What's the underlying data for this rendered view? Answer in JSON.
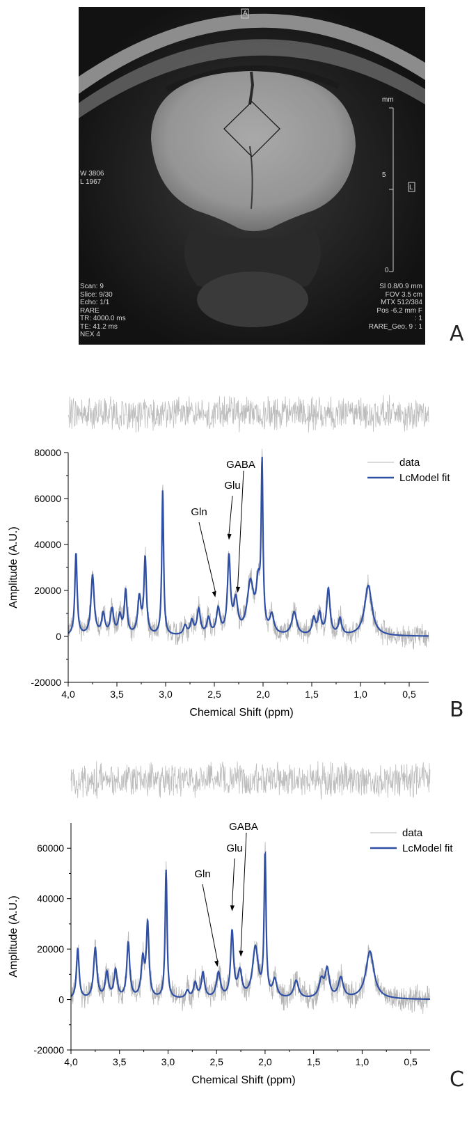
{
  "panel_a": {
    "letter": "A",
    "top_marker": "A",
    "right_marker": "L",
    "scale": {
      "unit": "mm",
      "mid": "5",
      "zero": "0"
    },
    "window_level": [
      "W 3806",
      "L 1967"
    ],
    "info_left": [
      "Scan: 9",
      "Slice: 9/30",
      "Echo: 1/1",
      "RARE",
      "TR: 4000.0 ms",
      "TE: 41.2 ms",
      "NEX 4"
    ],
    "info_right": [
      "Sl 0.8/0.9 mm",
      "FOV  3.5 cm",
      "MTX 512/384",
      "Pos -6.2 mm F",
      ": 1",
      "RARE_Geo, 9 : 1"
    ]
  },
  "chart_data": [
    {
      "type": "line",
      "panel_letter": "B",
      "xlabel": "Chemical Shift (ppm)",
      "ylabel": "Amplitude (A.U.)",
      "xlim": [
        4.0,
        0.3
      ],
      "ylim": [
        -20000,
        80000
      ],
      "xticks": [
        "4,0",
        "3,5",
        "3,0",
        "2,5",
        "2,0",
        "1,5",
        "1,0",
        "0,5"
      ],
      "yticks": [
        "-20000",
        "0",
        "20000",
        "40000",
        "60000",
        "80000"
      ],
      "legend": {
        "position": "top-right",
        "entries": [
          {
            "label": "data",
            "color": "#b5b5b5"
          },
          {
            "label": "LcModel fit",
            "color": "#2e4fa3"
          }
        ]
      },
      "annotations": [
        {
          "label": "Gln",
          "x": 2.49,
          "y": 17000
        },
        {
          "label": "Glu",
          "x": 2.35,
          "y": 42000
        },
        {
          "label": "GABA",
          "x": 2.26,
          "y": 19000
        }
      ],
      "peaks": [
        {
          "ppm": 3.92,
          "amp": 36000,
          "w": 0.014
        },
        {
          "ppm": 3.75,
          "amp": 26000,
          "w": 0.02
        },
        {
          "ppm": 3.64,
          "amp": 9000,
          "w": 0.02
        },
        {
          "ppm": 3.55,
          "amp": 11000,
          "w": 0.02
        },
        {
          "ppm": 3.47,
          "amp": 8000,
          "w": 0.02
        },
        {
          "ppm": 3.41,
          "amp": 19000,
          "w": 0.016
        },
        {
          "ppm": 3.27,
          "amp": 16000,
          "w": 0.02
        },
        {
          "ppm": 3.21,
          "amp": 33000,
          "w": 0.015
        },
        {
          "ppm": 3.03,
          "amp": 63000,
          "w": 0.011
        },
        {
          "ppm": 2.8,
          "amp": 4000,
          "w": 0.02
        },
        {
          "ppm": 2.73,
          "amp": 6000,
          "w": 0.02
        },
        {
          "ppm": 2.66,
          "amp": 11000,
          "w": 0.02
        },
        {
          "ppm": 2.56,
          "amp": 7000,
          "w": 0.02
        },
        {
          "ppm": 2.46,
          "amp": 11000,
          "w": 0.022
        },
        {
          "ppm": 2.35,
          "amp": 33000,
          "w": 0.018
        },
        {
          "ppm": 2.28,
          "amp": 14000,
          "w": 0.025
        },
        {
          "ppm": 2.13,
          "amp": 22000,
          "w": 0.04
        },
        {
          "ppm": 2.05,
          "amp": 19000,
          "w": 0.025
        },
        {
          "ppm": 2.01,
          "amp": 70000,
          "w": 0.011
        },
        {
          "ppm": 1.91,
          "amp": 8000,
          "w": 0.025
        },
        {
          "ppm": 1.68,
          "amp": 10000,
          "w": 0.03
        },
        {
          "ppm": 1.48,
          "amp": 7000,
          "w": 0.02
        },
        {
          "ppm": 1.42,
          "amp": 9000,
          "w": 0.02
        },
        {
          "ppm": 1.33,
          "amp": 20000,
          "w": 0.02
        },
        {
          "ppm": 1.21,
          "amp": 7000,
          "w": 0.02
        },
        {
          "ppm": 0.92,
          "amp": 22000,
          "w": 0.045
        }
      ]
    },
    {
      "type": "line",
      "panel_letter": "C",
      "xlabel": "Chemical Shift (ppm)",
      "ylabel": "Amplitude (A.U.)",
      "xlim": [
        4.0,
        0.3
      ],
      "ylim": [
        -20000,
        70000
      ],
      "xticks": [
        "4,0",
        "3,5",
        "3,0",
        "2,5",
        "2,0",
        "1,5",
        "1,0",
        "0,5"
      ],
      "yticks": [
        "-20000",
        "0",
        "20000",
        "40000",
        "60000"
      ],
      "legend": {
        "position": "top-right",
        "entries": [
          {
            "label": "data",
            "color": "#b5b5b5"
          },
          {
            "label": "LcModel fit",
            "color": "#2e4fa3"
          }
        ]
      },
      "annotations": [
        {
          "label": "Gln",
          "x": 2.49,
          "y": 13000
        },
        {
          "label": "Glu",
          "x": 2.34,
          "y": 35000
        },
        {
          "label": "GABA",
          "x": 2.25,
          "y": 17000
        }
      ],
      "peaks": [
        {
          "ppm": 3.93,
          "amp": 20000,
          "w": 0.016
        },
        {
          "ppm": 3.75,
          "amp": 20000,
          "w": 0.02
        },
        {
          "ppm": 3.63,
          "amp": 10000,
          "w": 0.02
        },
        {
          "ppm": 3.54,
          "amp": 11000,
          "w": 0.02
        },
        {
          "ppm": 3.41,
          "amp": 22000,
          "w": 0.018
        },
        {
          "ppm": 3.26,
          "amp": 15000,
          "w": 0.02
        },
        {
          "ppm": 3.21,
          "amp": 29000,
          "w": 0.016
        },
        {
          "ppm": 3.02,
          "amp": 51000,
          "w": 0.012
        },
        {
          "ppm": 2.8,
          "amp": 3000,
          "w": 0.02
        },
        {
          "ppm": 2.72,
          "amp": 6000,
          "w": 0.02
        },
        {
          "ppm": 2.64,
          "amp": 10000,
          "w": 0.02
        },
        {
          "ppm": 2.48,
          "amp": 10000,
          "w": 0.025
        },
        {
          "ppm": 2.34,
          "amp": 26000,
          "w": 0.018
        },
        {
          "ppm": 2.26,
          "amp": 10000,
          "w": 0.025
        },
        {
          "ppm": 2.1,
          "amp": 20000,
          "w": 0.035
        },
        {
          "ppm": 2.0,
          "amp": 56000,
          "w": 0.012
        },
        {
          "ppm": 1.9,
          "amp": 7000,
          "w": 0.025
        },
        {
          "ppm": 1.68,
          "amp": 7000,
          "w": 0.03
        },
        {
          "ppm": 1.42,
          "amp": 7000,
          "w": 0.03
        },
        {
          "ppm": 1.36,
          "amp": 11000,
          "w": 0.025
        },
        {
          "ppm": 1.22,
          "amp": 8000,
          "w": 0.03
        },
        {
          "ppm": 0.92,
          "amp": 19000,
          "w": 0.05
        }
      ]
    }
  ]
}
